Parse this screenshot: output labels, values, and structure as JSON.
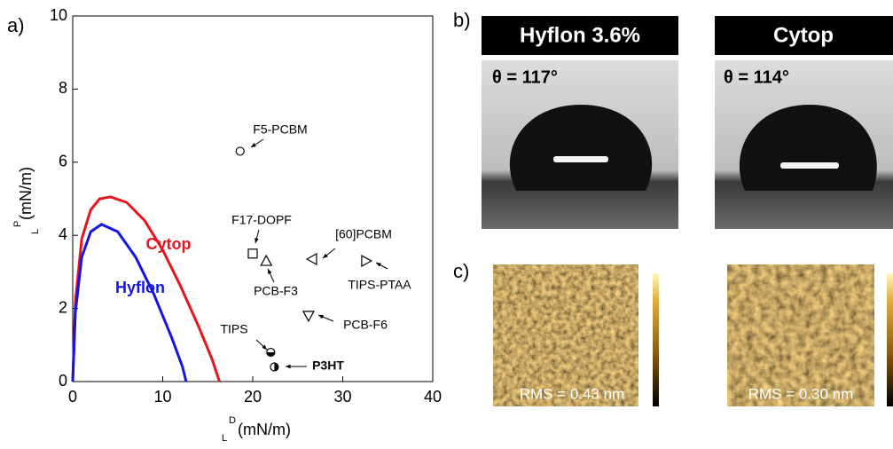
{
  "panel_labels": [
    "a)",
    "b)",
    "c)"
  ],
  "chart_data": {
    "type": "scatter",
    "xlabel": "(mN/m)",
    "xlabel_sup": "D",
    "xlabel_sub": "L",
    "ylabel": "(mN/m)",
    "ylabel_sup": "P",
    "ylabel_sub": "L",
    "xlim": [
      0,
      40
    ],
    "xticks": [
      0,
      10,
      20,
      30,
      40
    ],
    "ylim": [
      0,
      10
    ],
    "yticks": [
      0,
      2,
      4,
      6,
      8,
      10
    ],
    "curves": [
      {
        "name": "Cytop",
        "color": "#e8141b",
        "x": [
          0,
          0.3,
          1,
          2,
          3,
          4.2,
          6,
          8,
          10,
          12,
          14,
          15.5,
          16.3
        ],
        "values": [
          0,
          2.2,
          3.9,
          4.7,
          5.0,
          5.05,
          4.9,
          4.4,
          3.6,
          2.6,
          1.5,
          0.6,
          0
        ]
      },
      {
        "name": "Hyflon",
        "color": "#1414e6",
        "x": [
          0,
          0.3,
          1,
          2,
          3.2,
          5,
          7,
          9,
          11,
          12.2,
          12.6
        ],
        "values": [
          0,
          1.9,
          3.4,
          4.1,
          4.3,
          4.1,
          3.4,
          2.4,
          1.2,
          0.4,
          0
        ]
      }
    ],
    "points": [
      {
        "label": "F5-PCBM",
        "marker": "circle",
        "x": 18.6,
        "y": 6.3
      },
      {
        "label": "F17-DOPF",
        "marker": "square",
        "x": 20.0,
        "y": 3.5
      },
      {
        "label": "PCB-F3",
        "marker": "triangle-up",
        "x": 21.5,
        "y": 3.3
      },
      {
        "label": "[60]PCBM",
        "marker": "triangle-left",
        "x": 26.6,
        "y": 3.35
      },
      {
        "label": "TIPS-PTAA",
        "marker": "triangle-right",
        "x": 32.6,
        "y": 3.3
      },
      {
        "label": "PCB-F6",
        "marker": "triangle-down",
        "x": 26.2,
        "y": 1.8
      },
      {
        "label": "TIPS",
        "marker": "half-bottom",
        "x": 22.0,
        "y": 0.8
      },
      {
        "label": "P3HT",
        "marker": "half-right",
        "x": 22.4,
        "y": 0.4
      }
    ]
  },
  "contact_angle": [
    {
      "title": "Hyflon 3.6%",
      "angle": "θ = 117°"
    },
    {
      "title": "Cytop",
      "angle": "θ = 114°"
    }
  ],
  "afm": [
    {
      "rms": "RMS = 0.43 nm"
    },
    {
      "rms": "RMS = 0.30 nm"
    }
  ]
}
